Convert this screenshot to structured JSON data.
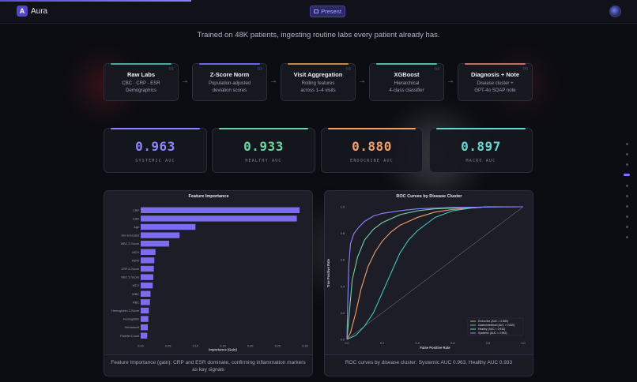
{
  "header": {
    "brand": "Aura",
    "logo_glyph": "A",
    "present_label": "Present",
    "present_icon": "screen-icon",
    "slide_progress": 0.3
  },
  "tagline": "Trained on 48K patients, ingesting routine labs every patient already has.",
  "pipeline": [
    {
      "num": "01",
      "title": "Raw Labs",
      "sub": [
        "CBC · CRP · ESR",
        "Demographics"
      ],
      "accent": "#4aa99a"
    },
    {
      "num": "02",
      "title": "Z-Score Norm",
      "sub": [
        "Population-adjusted",
        "deviation scores"
      ],
      "accent": "#6c63e8"
    },
    {
      "num": "03",
      "title": "Visit Aggregation",
      "sub": [
        "Rolling features",
        "across 1–4 visits"
      ],
      "accent": "#c08a4a"
    },
    {
      "num": "04",
      "title": "XGBoost",
      "sub": [
        "Hierarchical",
        "4-class classifier"
      ],
      "accent": "#55b99c"
    },
    {
      "num": "05",
      "title": "Diagnosis + Note",
      "sub": [
        "Disease cluster +",
        "GPT-4o SOAP note"
      ],
      "accent": "#c0706a"
    }
  ],
  "metrics": [
    {
      "value": "0.963",
      "label": "SYSTEMIC AUC",
      "color": "#8e86ff"
    },
    {
      "value": "0.933",
      "label": "HEALTHY AUC",
      "color": "#6fd3a2"
    },
    {
      "value": "0.880",
      "label": "ENDOCRINE AUC",
      "color": "#f2a06a"
    },
    {
      "value": "0.897",
      "label": "MACRO AUC",
      "color": "#6ad6d0"
    }
  ],
  "feature_caption": "Feature Importance (gain): CRP and ESR dominate, confirming inflammation markers as key signals",
  "roc_caption": "ROC curves by disease cluster: Systemic AUC 0.963, Healthy AUC 0.933",
  "chart_data": [
    {
      "type": "bar",
      "orientation": "horizontal",
      "title": "Feature Importance",
      "xlabel": "Importance (Gain)",
      "ylabel": "",
      "xlim": [
        0,
        0.3
      ],
      "xticks": [
        "0.00",
        "0.05",
        "0.10",
        "0.15",
        "0.20",
        "0.25",
        "0.30"
      ],
      "categories": [
        "CRP",
        "ESR",
        "Age",
        "Sex Encoded",
        "WBC Z-Score",
        "MCH",
        "RDW",
        "CRP Z-Score",
        "RBC Z-Score",
        "MCV",
        "WBC",
        "RBC",
        "Hemoglobin Z-Score",
        "Hemoglobin",
        "Hematocrit",
        "Platelet Count"
      ],
      "values": [
        0.29,
        0.285,
        0.1,
        0.071,
        0.052,
        0.027,
        0.025,
        0.024,
        0.023,
        0.022,
        0.018,
        0.017,
        0.015,
        0.014,
        0.013,
        0.012
      ],
      "bar_color": "#7b6cf0"
    },
    {
      "type": "line",
      "title": "ROC Curves by Disease Cluster",
      "xlabel": "False Positive Rate",
      "ylabel": "True Positive Rate",
      "xlim": [
        0,
        1
      ],
      "ylim": [
        0,
        1
      ],
      "xticks": [
        "0.0",
        "0.2",
        "0.4",
        "0.6",
        "0.8",
        "1.0"
      ],
      "yticks": [
        "0.0",
        "0.2",
        "0.4",
        "0.6",
        "0.8",
        "1.0"
      ],
      "legend_position": "lower-right",
      "series": [
        {
          "name": "Endocrine (AUC = 0.880)",
          "color": "#f2a06a",
          "x": [
            0,
            0.02,
            0.05,
            0.08,
            0.12,
            0.16,
            0.2,
            0.25,
            0.3,
            0.4,
            0.5,
            0.6,
            0.8,
            1.0
          ],
          "y": [
            0,
            0.05,
            0.2,
            0.38,
            0.55,
            0.66,
            0.74,
            0.81,
            0.86,
            0.92,
            0.96,
            0.98,
            1.0,
            1.0
          ]
        },
        {
          "name": "Gastrointestinal (AUC = 0.810)",
          "color": "#3ec7c0",
          "x": [
            0,
            0.05,
            0.1,
            0.15,
            0.2,
            0.25,
            0.3,
            0.35,
            0.4,
            0.5,
            0.6,
            0.7,
            0.8,
            1.0
          ],
          "y": [
            0,
            0.03,
            0.1,
            0.2,
            0.35,
            0.5,
            0.65,
            0.75,
            0.82,
            0.92,
            0.97,
            0.99,
            1.0,
            1.0
          ]
        },
        {
          "name": "Healthy (AUC = 0.933)",
          "color": "#6fd3a2",
          "x": [
            0,
            0.01,
            0.03,
            0.06,
            0.1,
            0.15,
            0.2,
            0.3,
            0.4,
            0.5,
            0.6,
            0.8,
            1.0
          ],
          "y": [
            0,
            0.15,
            0.45,
            0.62,
            0.75,
            0.83,
            0.88,
            0.94,
            0.97,
            0.985,
            0.99,
            1.0,
            1.0
          ]
        },
        {
          "name": "Systemic (AUC = 0.963)",
          "color": "#8e86ff",
          "x": [
            0,
            0.005,
            0.01,
            0.02,
            0.04,
            0.07,
            0.1,
            0.15,
            0.2,
            0.3,
            0.4,
            0.6,
            1.0
          ],
          "y": [
            0,
            0.3,
            0.55,
            0.72,
            0.8,
            0.85,
            0.89,
            0.93,
            0.95,
            0.97,
            0.985,
            0.995,
            1.0
          ]
        }
      ],
      "reference_line": {
        "x": [
          0,
          1
        ],
        "y": [
          0,
          1
        ],
        "color": "#8a8d9c"
      }
    }
  ]
}
